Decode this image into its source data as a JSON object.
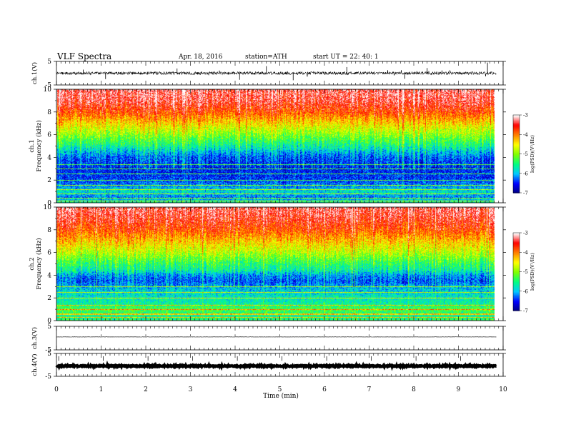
{
  "header": {
    "title": "VLF  Spectra",
    "date": "Apr. 18, 2016",
    "station": "station=ATH",
    "start_ut": "start  UT  =    22: 40: 1"
  },
  "colors": {
    "colormap": [
      "#000080",
      "#0000ff",
      "#00c8ff",
      "#00ff80",
      "#80ff00",
      "#ffff00",
      "#ff8000",
      "#ff0000",
      "#ffffff"
    ]
  },
  "chart_data": [
    {
      "type": "line",
      "name": "ch1-waveform",
      "ylabel": "ch.1(V)",
      "ylim": [
        -5,
        5
      ],
      "yticks": [
        "5",
        "-5"
      ],
      "xlim": [
        0,
        10
      ],
      "baseline": 0,
      "noise_amplitude": 0.6,
      "spikes": [
        [
          0.6,
          1.5
        ],
        [
          1.1,
          -2.5
        ],
        [
          2.7,
          2.0
        ],
        [
          4.1,
          -2.8
        ],
        [
          4.7,
          3.0
        ],
        [
          5.3,
          -3.0
        ],
        [
          6.5,
          2.6
        ],
        [
          7.8,
          -2.4
        ],
        [
          8.3,
          2.2
        ],
        [
          9.65,
          4.5
        ]
      ]
    },
    {
      "type": "heatmap",
      "name": "ch1-spectrogram",
      "ylabel": "ch.1\nFrequency  (kHz)",
      "xlim": [
        0,
        10
      ],
      "data_end_min": 9.8,
      "ylim_khz": [
        0,
        10
      ],
      "yticks": [
        "0",
        "2",
        "4",
        "6",
        "8",
        "10"
      ],
      "colorbar_label": "log(PSD)(V²/Hz)",
      "colorbar_range": [
        -7,
        -3
      ],
      "colorbar_ticks": [
        "-3",
        "-4",
        "-5",
        "-6",
        "-7"
      ],
      "profile_khz_logpsd": [
        [
          0,
          -5.5
        ],
        [
          0.5,
          -6.2
        ],
        [
          1,
          -5.8
        ],
        [
          2,
          -6.4
        ],
        [
          3,
          -6.5
        ],
        [
          4,
          -6.3
        ],
        [
          5,
          -5.6
        ],
        [
          6,
          -5.0
        ],
        [
          7,
          -4.4
        ],
        [
          8,
          -3.8
        ],
        [
          9,
          -3.4
        ],
        [
          10,
          -3.3
        ]
      ],
      "lines_khz": [
        0.2,
        0.45,
        0.8,
        1.2,
        1.6,
        2.0,
        2.6,
        3.0,
        3.4
      ]
    },
    {
      "type": "heatmap",
      "name": "ch2-spectrogram",
      "ylabel": "ch.2\nFrequency  (kHz)",
      "xlim": [
        0,
        10
      ],
      "data_end_min": 9.8,
      "ylim_khz": [
        0,
        10
      ],
      "yticks": [
        "0",
        "2",
        "4",
        "6",
        "8",
        "10"
      ],
      "colorbar_label": "log(PSD)(V²/Hz)",
      "colorbar_range": [
        -7,
        -3
      ],
      "colorbar_ticks": [
        "-3",
        "-4",
        "-5",
        "-6",
        "-7"
      ],
      "profile_khz_logpsd": [
        [
          0,
          -5.4
        ],
        [
          0.5,
          -5.6
        ],
        [
          1,
          -5.2
        ],
        [
          1.5,
          -5.6
        ],
        [
          2,
          -5.7
        ],
        [
          3,
          -6.0
        ],
        [
          3.5,
          -6.3
        ],
        [
          4,
          -6.1
        ],
        [
          4.5,
          -5.6
        ],
        [
          5,
          -5.4
        ],
        [
          6,
          -4.8
        ],
        [
          7,
          -4.3
        ],
        [
          8,
          -3.8
        ],
        [
          9,
          -3.5
        ],
        [
          10,
          -3.3
        ]
      ],
      "lines_khz": [
        0.3,
        0.6,
        1.0,
        1.4,
        2.0,
        2.5,
        3.0
      ]
    },
    {
      "type": "line",
      "name": "ch3-waveform",
      "ylabel": "ch.3(V)",
      "ylim": [
        -5,
        5
      ],
      "yticks": [
        "5",
        "-5"
      ],
      "xlim": [
        0,
        10
      ],
      "baseline": 0.5,
      "noise_amplitude": 0.05
    },
    {
      "type": "line",
      "name": "ch4-waveform",
      "ylabel": "ch.4(V)",
      "ylim": [
        -5,
        5
      ],
      "yticks": [
        "5",
        "-5"
      ],
      "xlim": [
        0,
        10
      ],
      "baseline": -0.5,
      "noise_amplitude": 0.25
    }
  ],
  "x_axis": {
    "label": "Time  (min)",
    "ticks": [
      "0",
      "1",
      "2",
      "3",
      "4",
      "5",
      "6",
      "7",
      "8",
      "9",
      "10"
    ],
    "range": [
      0,
      10
    ]
  }
}
